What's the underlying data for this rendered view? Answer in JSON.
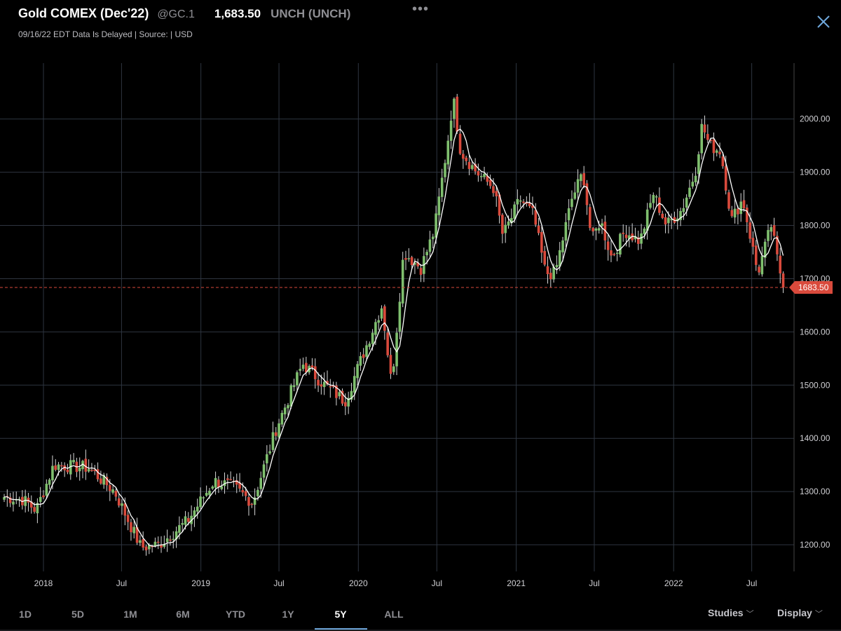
{
  "header": {
    "name": "Gold COMEX (Dec'22)",
    "symbol": "@GC.1",
    "price": "1,683.50",
    "change": "UNCH (UNCH)",
    "subline": "09/16/22 EDT Data Is Delayed | Source:  | USD",
    "more_icon": "ellipsis-icon",
    "close_icon": "close-icon"
  },
  "ranges": [
    "1D",
    "5D",
    "1M",
    "6M",
    "YTD",
    "1Y",
    "5Y",
    "ALL"
  ],
  "active_range": "5Y",
  "menus": {
    "studies": "Studies",
    "display": "Display"
  },
  "colors": {
    "up": "#7fbf6e",
    "down": "#d94a3c",
    "ma": "#ffffff",
    "grid": "#2e3540",
    "marker": "#d94a3c",
    "accent": "#6fa8dc"
  },
  "chart_data": {
    "type": "candlestick",
    "last_value": 1683.5,
    "last_label": "1683.50",
    "ylim": [
      1150,
      2105
    ],
    "yticks": [
      1200,
      1300,
      1400,
      1500,
      1600,
      1700,
      1800,
      1900,
      2000
    ],
    "ytick_labels": [
      "1200.00",
      "1300.00",
      "1400.00",
      "1500.00",
      "1600.00",
      "1700.00",
      "1800.00",
      "1900.00",
      "2000.00"
    ],
    "xtick_labels": [
      "2018",
      "Jul",
      "2019",
      "Jul",
      "2020",
      "Jul",
      "2021",
      "Jul",
      "2022",
      "Jul"
    ],
    "xtick_dates": [
      "2018-01-01",
      "2018-07-01",
      "2019-01-01",
      "2019-07-01",
      "2020-01-01",
      "2020-07-01",
      "2021-01-01",
      "2021-07-01",
      "2022-01-01",
      "2022-07-01"
    ],
    "x_range": [
      "2017-10-02",
      "2022-09-16"
    ],
    "overlay": "moving average (white line)",
    "weekly_close_anchors": [
      [
        "2017-10-02",
        1290
      ],
      [
        "2017-11-15",
        1285
      ],
      [
        "2017-12-15",
        1265
      ],
      [
        "2018-01-25",
        1350
      ],
      [
        "2018-04-15",
        1345
      ],
      [
        "2018-06-15",
        1300
      ],
      [
        "2018-08-15",
        1195
      ],
      [
        "2018-09-25",
        1200
      ],
      [
        "2018-12-01",
        1245
      ],
      [
        "2019-01-31",
        1320
      ],
      [
        "2019-03-15",
        1310
      ],
      [
        "2019-05-01",
        1280
      ],
      [
        "2019-06-25",
        1420
      ],
      [
        "2019-08-25",
        1540
      ],
      [
        "2019-10-15",
        1500
      ],
      [
        "2019-12-01",
        1470
      ],
      [
        "2020-01-20",
        1575
      ],
      [
        "2020-02-25",
        1650
      ],
      [
        "2020-03-18",
        1500
      ],
      [
        "2020-04-15",
        1750
      ],
      [
        "2020-05-25",
        1720
      ],
      [
        "2020-06-25",
        1790
      ],
      [
        "2020-07-25",
        1950
      ],
      [
        "2020-08-08",
        2040
      ],
      [
        "2020-08-25",
        1940
      ],
      [
        "2020-10-01",
        1900
      ],
      [
        "2020-11-10",
        1870
      ],
      [
        "2020-12-01",
        1780
      ],
      [
        "2021-01-10",
        1850
      ],
      [
        "2021-02-10",
        1820
      ],
      [
        "2021-03-10",
        1710
      ],
      [
        "2021-04-01",
        1710
      ],
      [
        "2021-05-10",
        1850
      ],
      [
        "2021-06-05",
        1900
      ],
      [
        "2021-06-25",
        1770
      ],
      [
        "2021-07-15",
        1810
      ],
      [
        "2021-08-10",
        1740
      ],
      [
        "2021-09-10",
        1790
      ],
      [
        "2021-10-15",
        1770
      ],
      [
        "2021-11-15",
        1860
      ],
      [
        "2021-12-15",
        1800
      ],
      [
        "2022-01-20",
        1830
      ],
      [
        "2022-02-20",
        1900
      ],
      [
        "2022-03-08",
        1990
      ],
      [
        "2022-03-25",
        1950
      ],
      [
        "2022-04-20",
        1940
      ],
      [
        "2022-05-15",
        1810
      ],
      [
        "2022-06-10",
        1850
      ],
      [
        "2022-07-15",
        1710
      ],
      [
        "2022-08-15",
        1800
      ],
      [
        "2022-09-02",
        1720
      ],
      [
        "2022-09-16",
        1683.5
      ]
    ]
  }
}
